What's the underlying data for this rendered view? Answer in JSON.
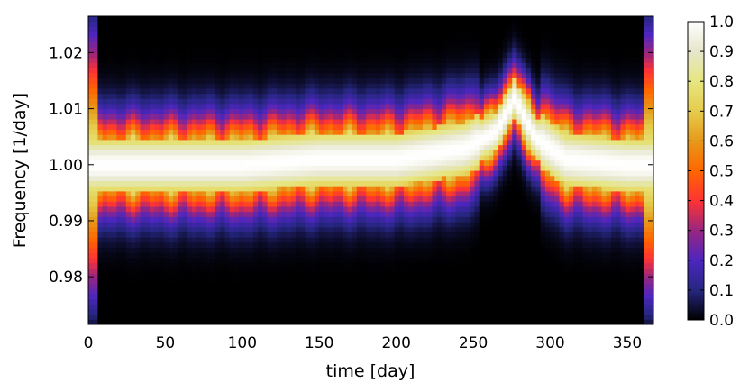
{
  "chart_data": {
    "type": "heatmap",
    "title": "",
    "xlabel": "time [day]",
    "ylabel": "Frequency [1/day]",
    "xlim": [
      0,
      367
    ],
    "ylim": [
      0.9715,
      1.0265
    ],
    "x_ticks": [
      0,
      50,
      100,
      150,
      200,
      250,
      300,
      350
    ],
    "x_tick_labels": [
      "0",
      "50",
      "100",
      "150",
      "200",
      "250",
      "300",
      "350"
    ],
    "y_ticks": [
      0.98,
      0.99,
      1.0,
      1.01,
      1.02
    ],
    "y_tick_labels": [
      "0.98",
      "0.99",
      "1.00",
      "1.01",
      "1.02"
    ],
    "colormap": "CMRmap",
    "colorbar": {
      "range": [
        0.0,
        1.0
      ],
      "ticks": [
        0.0,
        0.1,
        0.2,
        0.3,
        0.4,
        0.5,
        0.6,
        0.7,
        0.8,
        0.9,
        1.0
      ],
      "tick_labels": [
        "0.0",
        "0.1",
        "0.2",
        "0.3",
        "0.4",
        "0.5",
        "0.6",
        "0.7",
        "0.8",
        "0.9",
        "1.0"
      ],
      "colors": [
        "#000000",
        "#262680",
        "#4d26bf",
        "#992680",
        "#ff3333",
        "#ff6600",
        "#e6991a",
        "#e6cc4d",
        "#e6e680",
        "#e6e6cc",
        "#ffffff"
      ]
    },
    "ridge_center_frequency": [
      {
        "t": 0,
        "f": 1.0
      },
      {
        "t": 50,
        "f": 1.0
      },
      {
        "t": 100,
        "f": 1.0
      },
      {
        "t": 150,
        "f": 1.001
      },
      {
        "t": 200,
        "f": 1.001
      },
      {
        "t": 245,
        "f": 1.003
      },
      {
        "t": 265,
        "f": 1.006
      },
      {
        "t": 277,
        "f": 1.012
      },
      {
        "t": 290,
        "f": 1.005
      },
      {
        "t": 310,
        "f": 1.001
      },
      {
        "t": 350,
        "f": 1.0
      },
      {
        "t": 367,
        "f": 1.0
      }
    ],
    "ridge_halfwidth_frequency": 0.0085
  }
}
